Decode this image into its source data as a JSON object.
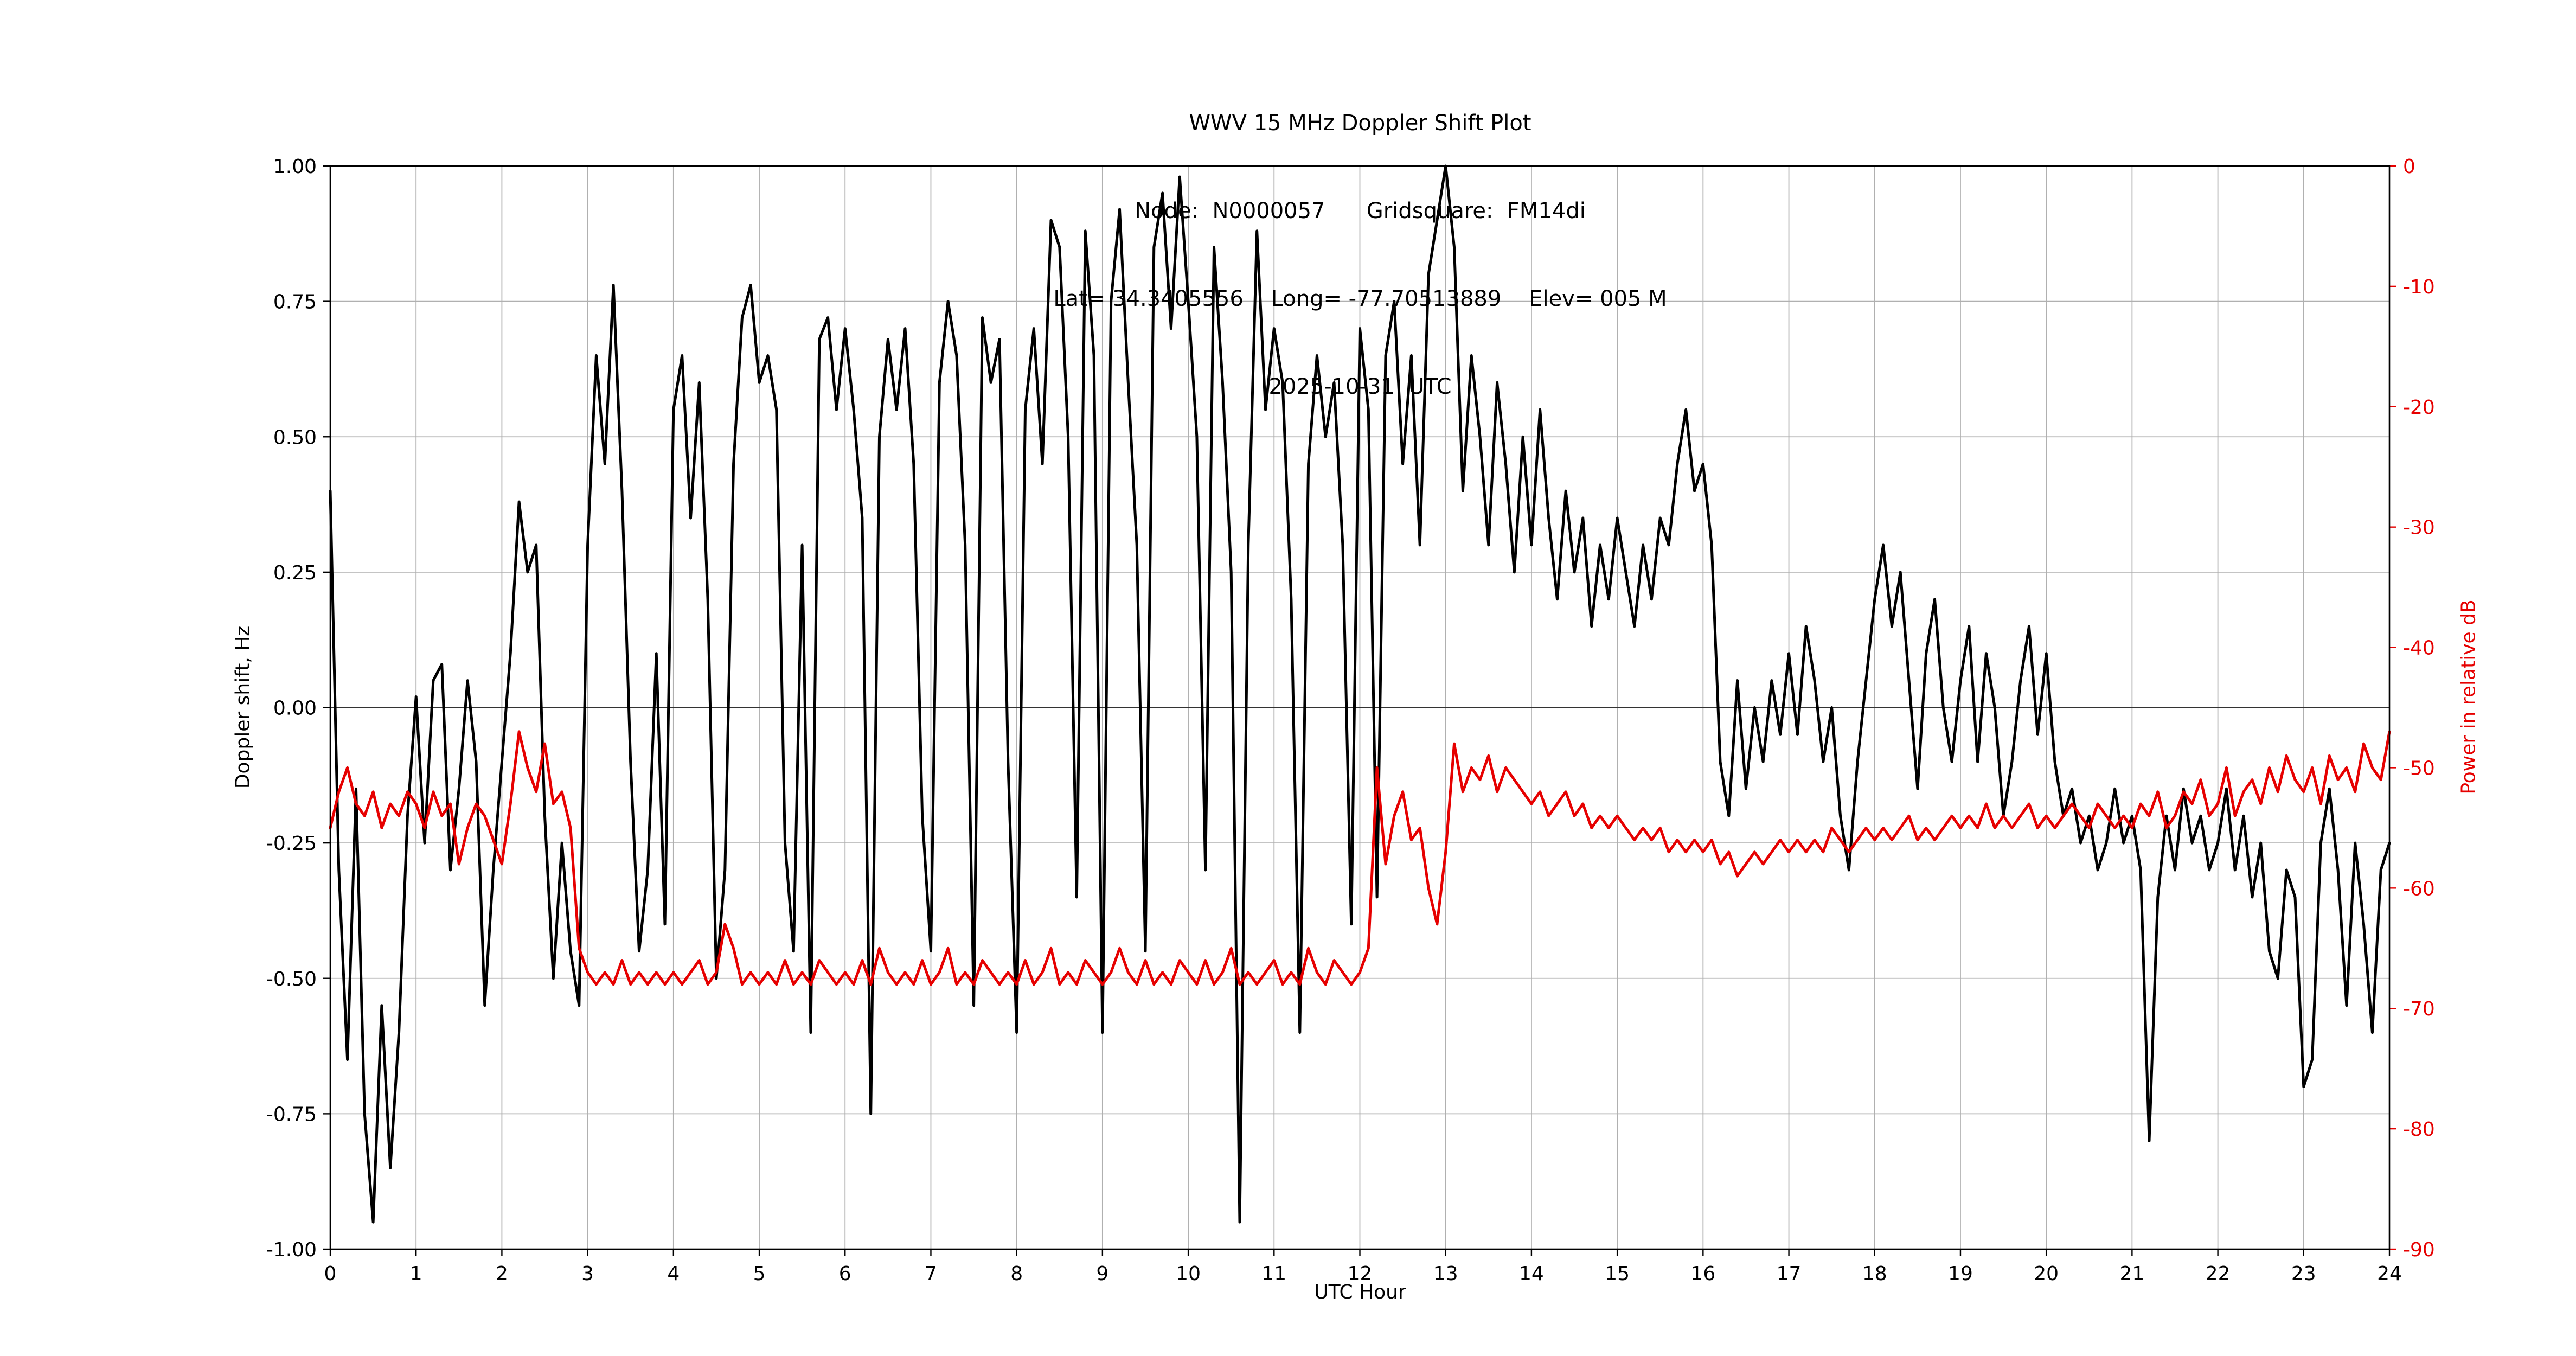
{
  "title": {
    "line1": "WWV 15 MHz Doppler Shift Plot",
    "line2": "Node:  N0000057      Gridsquare:  FM14di",
    "line3": "Lat= 34.3405556    Long= -77.70513889    Elev= 005 M",
    "line4": "2025-10-31  UTC"
  },
  "axes": {
    "x_label": "UTC Hour",
    "y_left_label": "Doppler shift, Hz",
    "y_right_label": "Power in relative dB"
  },
  "colors": {
    "doppler": "#000000",
    "power": "#e60000",
    "grid": "#b0b0b0",
    "zero_line": "#333333"
  },
  "chart_data": {
    "type": "line",
    "title": "WWV 15 MHz Doppler Shift Plot",
    "xlabel": "UTC Hour",
    "grid": true,
    "x_range": [
      0,
      24
    ],
    "x_tick_values": [
      0,
      1,
      2,
      3,
      4,
      5,
      6,
      7,
      8,
      9,
      10,
      11,
      12,
      13,
      14,
      15,
      16,
      17,
      18,
      19,
      20,
      21,
      22,
      23,
      24
    ],
    "x_tick_labels": [
      "0",
      "1",
      "2",
      "3",
      "4",
      "5",
      "6",
      "7",
      "8",
      "9",
      "10",
      "11",
      "12",
      "13",
      "14",
      "15",
      "16",
      "17",
      "18",
      "19",
      "20",
      "21",
      "22",
      "23",
      "24"
    ],
    "y_left_range": [
      -1.0,
      1.0
    ],
    "y_left_tick_values": [
      1.0,
      0.75,
      0.5,
      0.25,
      0.0,
      -0.25,
      -0.5,
      -0.75,
      -1.0
    ],
    "y_left_tick_labels": [
      "1.00",
      "0.75",
      "0.50",
      "0.25",
      "0.00",
      "-0.25",
      "-0.50",
      "-0.75",
      "-1.00"
    ],
    "y_right_range": [
      -90,
      0
    ],
    "y_right_tick_values": [
      0,
      -10,
      -20,
      -30,
      -40,
      -50,
      -60,
      -70,
      -80,
      -90
    ],
    "y_right_tick_labels": [
      "0",
      "-10",
      "-20",
      "-30",
      "-40",
      "-50",
      "-60",
      "-70",
      "-80",
      "-90"
    ],
    "x_start": 0,
    "x_step": 0.1,
    "series": [
      {
        "name": "Doppler shift, Hz",
        "axis": "left",
        "color": "#000000",
        "values": [
          0.4,
          -0.3,
          -0.65,
          -0.15,
          -0.75,
          -0.95,
          -0.55,
          -0.85,
          -0.6,
          -0.2,
          0.02,
          -0.25,
          0.05,
          0.08,
          -0.3,
          -0.15,
          0.05,
          -0.1,
          -0.55,
          -0.3,
          -0.1,
          0.1,
          0.38,
          0.25,
          0.3,
          -0.2,
          -0.5,
          -0.25,
          -0.45,
          -0.55,
          0.3,
          0.65,
          0.45,
          0.78,
          0.4,
          -0.1,
          -0.45,
          -0.3,
          0.1,
          -0.4,
          0.55,
          0.65,
          0.35,
          0.6,
          0.2,
          -0.5,
          -0.3,
          0.45,
          0.72,
          0.78,
          0.6,
          0.65,
          0.55,
          -0.25,
          -0.45,
          0.3,
          -0.6,
          0.68,
          0.72,
          0.55,
          0.7,
          0.55,
          0.35,
          -0.75,
          0.5,
          0.68,
          0.55,
          0.7,
          0.45,
          -0.2,
          -0.45,
          0.6,
          0.75,
          0.65,
          0.3,
          -0.55,
          0.72,
          0.6,
          0.68,
          -0.1,
          -0.6,
          0.55,
          0.7,
          0.45,
          0.9,
          0.85,
          0.5,
          -0.35,
          0.88,
          0.65,
          -0.6,
          0.75,
          0.92,
          0.6,
          0.3,
          -0.45,
          0.85,
          0.95,
          0.7,
          0.98,
          0.75,
          0.5,
          -0.3,
          0.85,
          0.6,
          0.25,
          -0.95,
          0.3,
          0.88,
          0.55,
          0.7,
          0.6,
          0.2,
          -0.6,
          0.45,
          0.65,
          0.5,
          0.6,
          0.3,
          -0.4,
          0.7,
          0.55,
          -0.35,
          0.65,
          0.75,
          0.45,
          0.65,
          0.3,
          0.8,
          0.9,
          1.0,
          0.85,
          0.4,
          0.65,
          0.5,
          0.3,
          0.6,
          0.45,
          0.25,
          0.5,
          0.3,
          0.55,
          0.35,
          0.2,
          0.4,
          0.25,
          0.35,
          0.15,
          0.3,
          0.2,
          0.35,
          0.25,
          0.15,
          0.3,
          0.2,
          0.35,
          0.3,
          0.45,
          0.55,
          0.4,
          0.45,
          0.3,
          -0.1,
          -0.2,
          0.05,
          -0.15,
          0.0,
          -0.1,
          0.05,
          -0.05,
          0.1,
          -0.05,
          0.15,
          0.05,
          -0.1,
          0.0,
          -0.2,
          -0.3,
          -0.1,
          0.05,
          0.2,
          0.3,
          0.15,
          0.25,
          0.05,
          -0.15,
          0.1,
          0.2,
          0.0,
          -0.1,
          0.05,
          0.15,
          -0.1,
          0.1,
          0.0,
          -0.2,
          -0.1,
          0.05,
          0.15,
          -0.05,
          0.1,
          -0.1,
          -0.2,
          -0.15,
          -0.25,
          -0.2,
          -0.3,
          -0.25,
          -0.15,
          -0.25,
          -0.2,
          -0.3,
          -0.8,
          -0.35,
          -0.2,
          -0.3,
          -0.15,
          -0.25,
          -0.2,
          -0.3,
          -0.25,
          -0.15,
          -0.3,
          -0.2,
          -0.35,
          -0.25,
          -0.45,
          -0.5,
          -0.3,
          -0.35,
          -0.7,
          -0.65,
          -0.25,
          -0.15,
          -0.3,
          -0.55,
          -0.25,
          -0.4,
          -0.6,
          -0.3,
          -0.25
        ]
      },
      {
        "name": "Power in relative dB",
        "axis": "right",
        "color": "#e60000",
        "values": [
          -55,
          -52,
          -50,
          -53,
          -54,
          -52,
          -55,
          -53,
          -54,
          -52,
          -53,
          -55,
          -52,
          -54,
          -53,
          -58,
          -55,
          -53,
          -54,
          -56,
          -58,
          -53,
          -47,
          -50,
          -52,
          -48,
          -53,
          -52,
          -55,
          -65,
          -67,
          -68,
          -67,
          -68,
          -66,
          -68,
          -67,
          -68,
          -67,
          -68,
          -67,
          -68,
          -67,
          -66,
          -68,
          -67,
          -63,
          -65,
          -68,
          -67,
          -68,
          -67,
          -68,
          -66,
          -68,
          -67,
          -68,
          -66,
          -67,
          -68,
          -67,
          -68,
          -66,
          -68,
          -65,
          -67,
          -68,
          -67,
          -68,
          -66,
          -68,
          -67,
          -65,
          -68,
          -67,
          -68,
          -66,
          -67,
          -68,
          -67,
          -68,
          -66,
          -68,
          -67,
          -65,
          -68,
          -67,
          -68,
          -66,
          -67,
          -68,
          -67,
          -65,
          -67,
          -68,
          -66,
          -68,
          -67,
          -68,
          -66,
          -67,
          -68,
          -66,
          -68,
          -67,
          -65,
          -68,
          -67,
          -68,
          -67,
          -66,
          -68,
          -67,
          -68,
          -65,
          -67,
          -68,
          -66,
          -67,
          -68,
          -67,
          -65,
          -50,
          -58,
          -54,
          -52,
          -56,
          -55,
          -60,
          -63,
          -57,
          -48,
          -52,
          -50,
          -51,
          -49,
          -52,
          -50,
          -51,
          -52,
          -53,
          -52,
          -54,
          -53,
          -52,
          -54,
          -53,
          -55,
          -54,
          -55,
          -54,
          -55,
          -56,
          -55,
          -56,
          -55,
          -57,
          -56,
          -57,
          -56,
          -57,
          -56,
          -58,
          -57,
          -59,
          -58,
          -57,
          -58,
          -57,
          -56,
          -57,
          -56,
          -57,
          -56,
          -57,
          -55,
          -56,
          -57,
          -56,
          -55,
          -56,
          -55,
          -56,
          -55,
          -54,
          -56,
          -55,
          -56,
          -55,
          -54,
          -55,
          -54,
          -55,
          -53,
          -55,
          -54,
          -55,
          -54,
          -53,
          -55,
          -54,
          -55,
          -54,
          -53,
          -54,
          -55,
          -53,
          -54,
          -55,
          -54,
          -55,
          -53,
          -54,
          -52,
          -55,
          -54,
          -52,
          -53,
          -51,
          -54,
          -53,
          -50,
          -54,
          -52,
          -51,
          -53,
          -50,
          -52,
          -49,
          -51,
          -52,
          -50,
          -53,
          -49,
          -51,
          -50,
          -52,
          -48,
          -50,
          -51,
          -47
        ]
      }
    ]
  }
}
